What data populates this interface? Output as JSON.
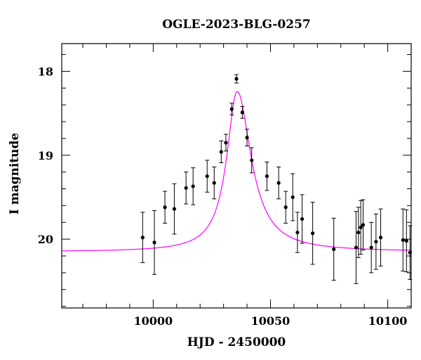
{
  "chart_data": {
    "type": "scatter",
    "title": "OGLE-2023-BLG-0257",
    "xlabel": "HJD - 2450000",
    "ylabel": "I magnitude",
    "xlim": [
      9961,
      10110
    ],
    "ylim": [
      20.82,
      17.67
    ],
    "y_inverted": true,
    "grid": false,
    "x_ticks_major": [
      10000,
      10050,
      10100
    ],
    "x_ticks_minor_step": 10,
    "y_ticks_major": [
      18,
      19,
      20
    ],
    "y_ticks_minor_step": 0.2,
    "point_color": "#000000",
    "model_color": "#ff00ff",
    "model": {
      "name": "",
      "baseline_mag": 20.15,
      "peak_mag": 18.24,
      "t0": 10035.8,
      "tau_rise": 5.4,
      "tau_fall": 7.2
    },
    "points": [
      {
        "x": 9995.5,
        "y": 19.98,
        "err": 0.3
      },
      {
        "x": 10000.5,
        "y": 20.04,
        "err": 0.38
      },
      {
        "x": 10005.0,
        "y": 19.62,
        "err": 0.19
      },
      {
        "x": 10009.0,
        "y": 19.64,
        "err": 0.3
      },
      {
        "x": 10014.0,
        "y": 19.39,
        "err": 0.19
      },
      {
        "x": 10017.0,
        "y": 19.37,
        "err": 0.22
      },
      {
        "x": 10023.0,
        "y": 19.25,
        "err": 0.19
      },
      {
        "x": 10026.0,
        "y": 19.33,
        "err": 0.19
      },
      {
        "x": 10029.0,
        "y": 18.96,
        "err": 0.13
      },
      {
        "x": 10031.0,
        "y": 18.85,
        "err": 0.1
      },
      {
        "x": 10033.5,
        "y": 18.45,
        "err": 0.07
      },
      {
        "x": 10035.5,
        "y": 18.09,
        "err": 0.05
      },
      {
        "x": 10038.0,
        "y": 18.49,
        "err": 0.07
      },
      {
        "x": 10040.0,
        "y": 18.79,
        "err": 0.1
      },
      {
        "x": 10042.0,
        "y": 19.06,
        "err": 0.15
      },
      {
        "x": 10048.5,
        "y": 19.25,
        "err": 0.17
      },
      {
        "x": 10053.5,
        "y": 19.33,
        "err": 0.19
      },
      {
        "x": 10056.5,
        "y": 19.62,
        "err": 0.19
      },
      {
        "x": 10059.5,
        "y": 19.5,
        "err": 0.28
      },
      {
        "x": 10061.5,
        "y": 19.92,
        "err": 0.24
      },
      {
        "x": 10063.5,
        "y": 19.76,
        "err": 0.29
      },
      {
        "x": 10068.0,
        "y": 19.93,
        "err": 0.37
      },
      {
        "x": 10077.0,
        "y": 20.12,
        "err": 0.37
      },
      {
        "x": 10086.5,
        "y": 20.1,
        "err": 0.43
      },
      {
        "x": 10087.5,
        "y": 19.92,
        "err": 0.3
      },
      {
        "x": 10088.5,
        "y": 19.86,
        "err": 0.32
      },
      {
        "x": 10089.5,
        "y": 19.83,
        "err": 0.3
      },
      {
        "x": 10093.0,
        "y": 20.1,
        "err": 0.3
      },
      {
        "x": 10095.0,
        "y": 20.03,
        "err": 0.33
      },
      {
        "x": 10097.0,
        "y": 19.98,
        "err": 0.34
      },
      {
        "x": 10106.5,
        "y": 20.01,
        "err": 0.37
      },
      {
        "x": 10108.0,
        "y": 20.02,
        "err": 0.37
      },
      {
        "x": 10109.5,
        "y": 20.16,
        "err": 0.32
      }
    ]
  }
}
